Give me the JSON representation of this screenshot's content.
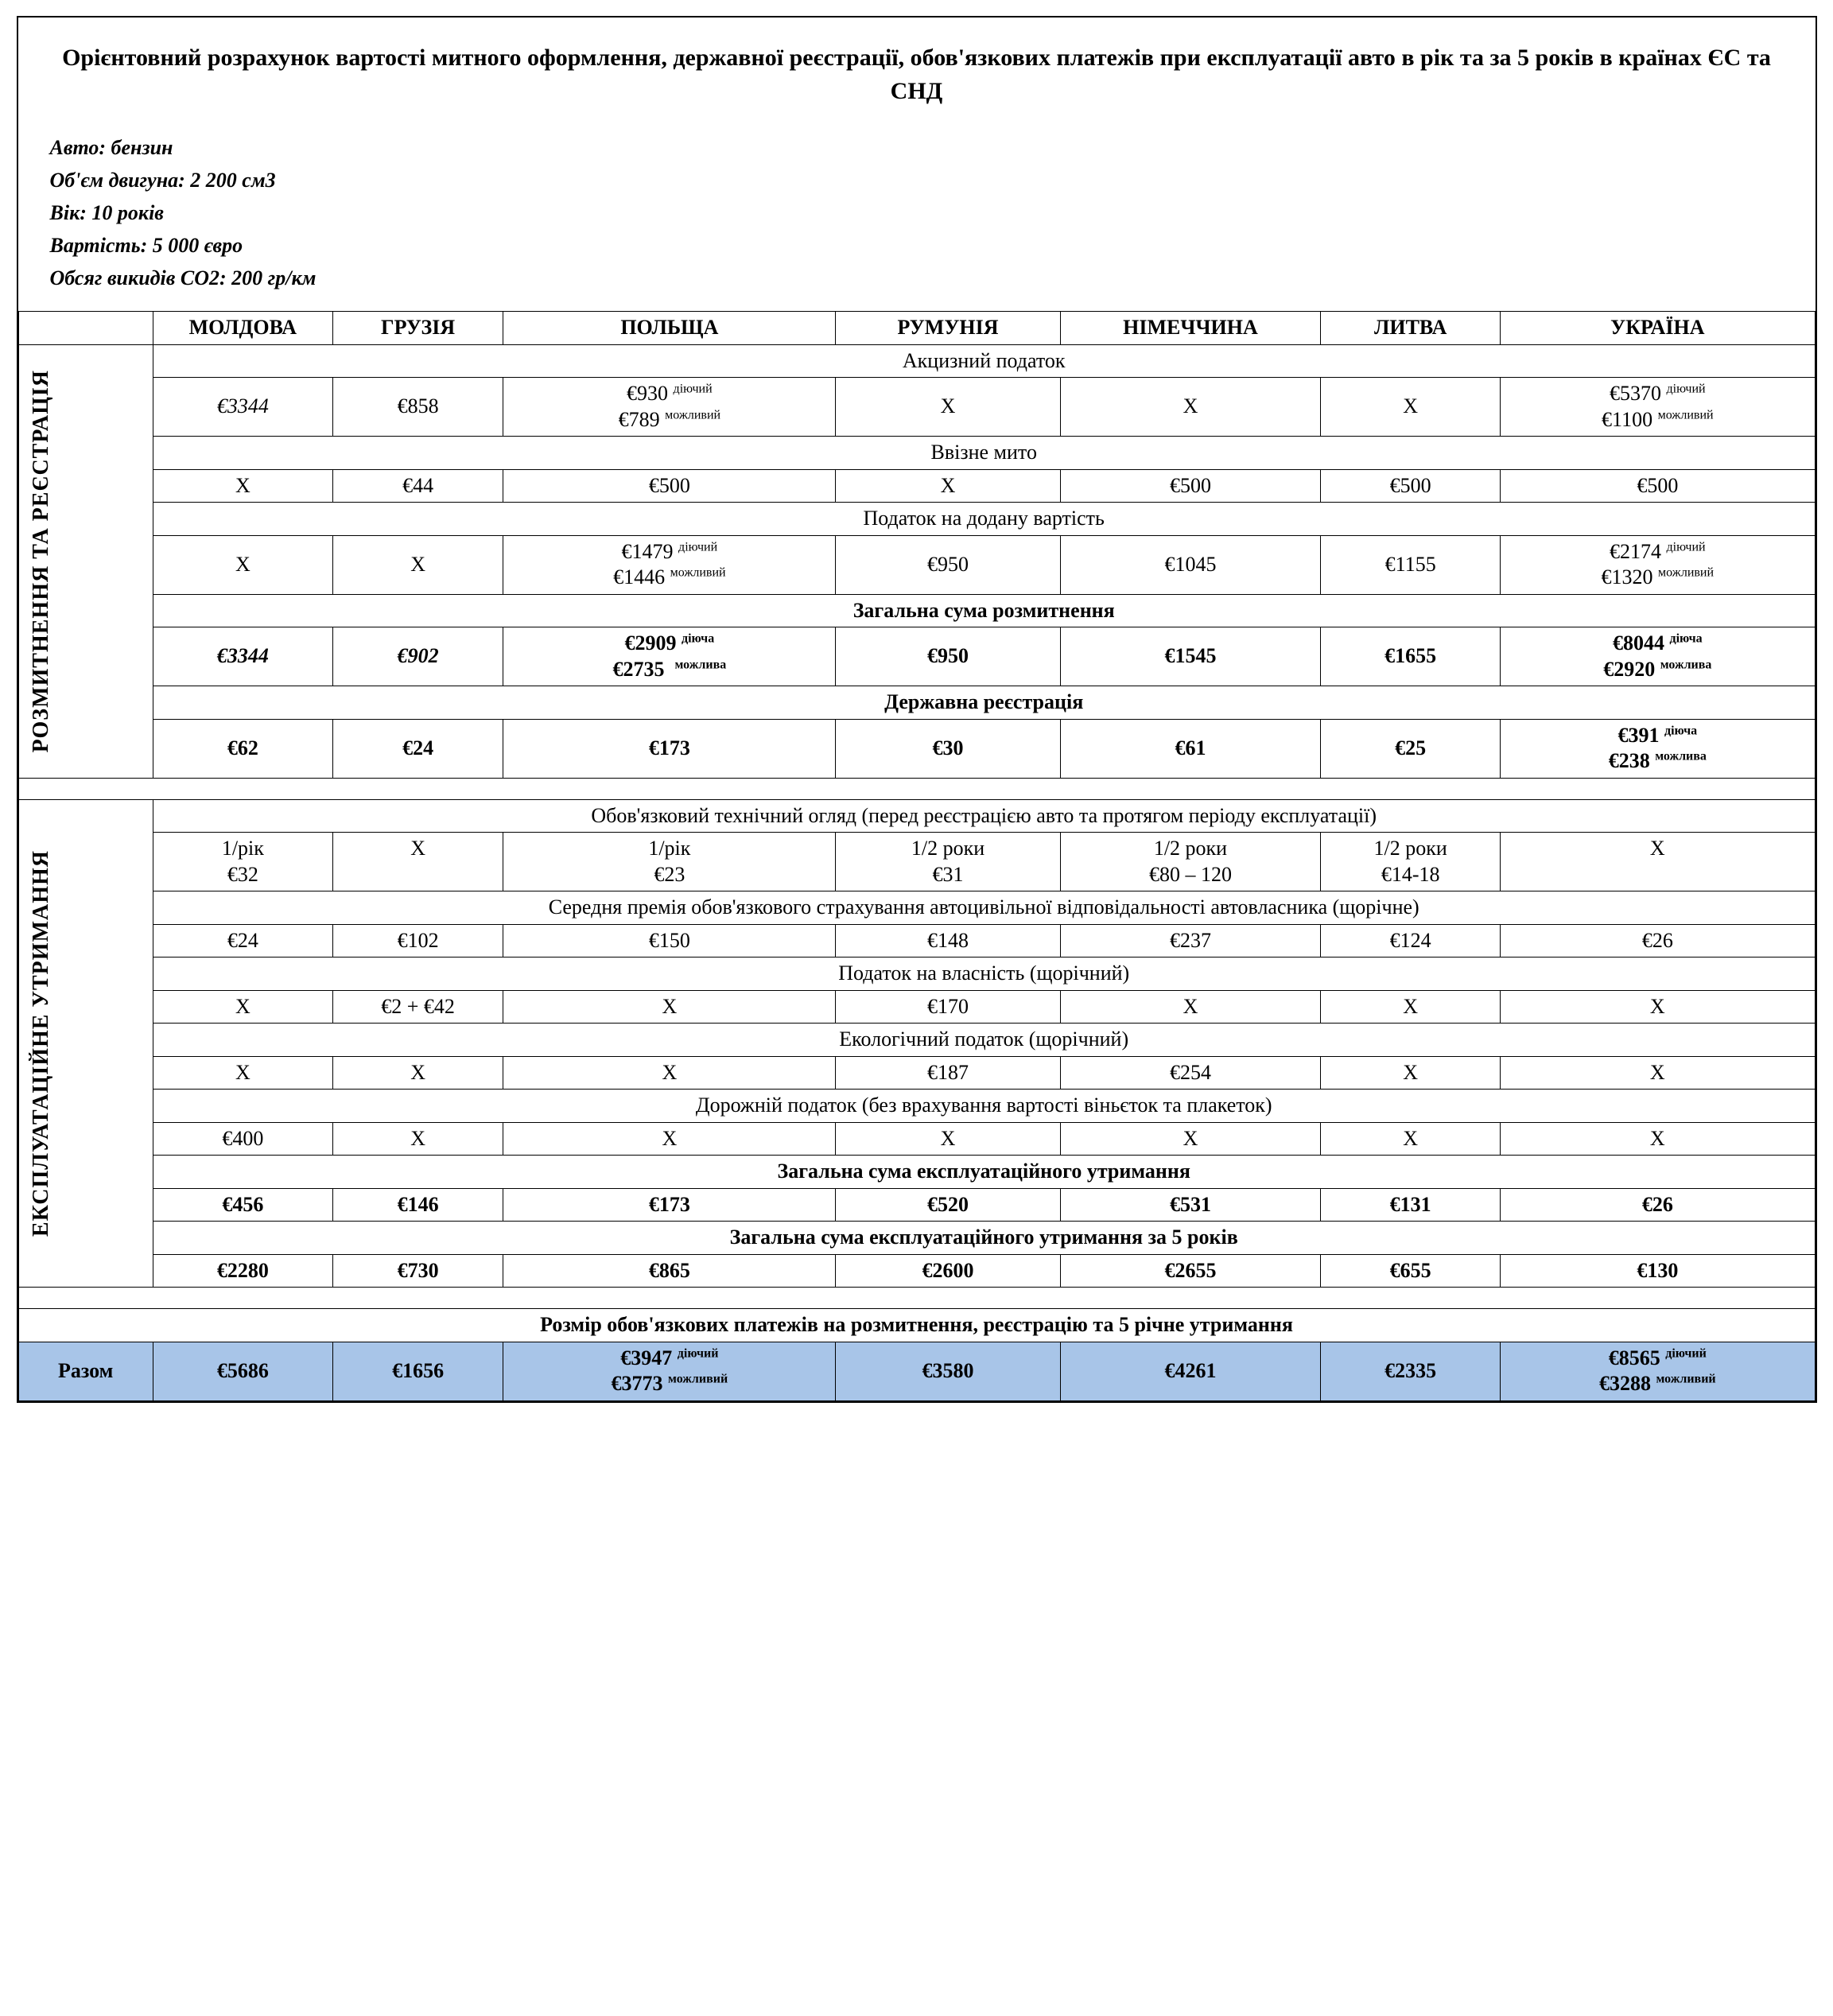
{
  "title": "Орієнтовний розрахунок вартості митного оформлення, державної реєстрації, обов'язкових платежів при експлуатації авто в рік та за 5 років в країнах ЄС та СНД",
  "specs": {
    "fuel": "Авто: бензин",
    "engine": "Об'єм двигуна: 2 200 см3",
    "age": "Вік: 10 років",
    "price": "Вартість: 5 000 євро",
    "co2": "Обсяг викидів CO2: 200 гр/км"
  },
  "countries": [
    "МОЛДОВА",
    "ГРУЗІЯ",
    "ПОЛЬЩА",
    "РУМУНІЯ",
    "НІМЕЧЧИНА",
    "ЛИТВА",
    "УКРАЇНА"
  ],
  "sect1": {
    "vlabel": "РОЗМИТНЕННЯ ТА РЕЄСТРАЦІЯ",
    "excise_h": "Акцизний податок",
    "excise": {
      "md": "€3344",
      "ge": "€858",
      "pl_a": "€930",
      "pl_a_sup": "діючий",
      "pl_b": "€789",
      "pl_b_sup": "можливий",
      "ro": "Х",
      "de": "Х",
      "lt": "Х",
      "ua_a": "€5370",
      "ua_a_sup": "діючий",
      "ua_b": "€1100",
      "ua_b_sup": "можливий"
    },
    "import_h": "Ввізне мито",
    "import": {
      "md": "Х",
      "ge": "€44",
      "pl": "€500",
      "ro": "Х",
      "de": "€500",
      "lt": "€500",
      "ua": "€500"
    },
    "vat_h": "Податок на додану вартість",
    "vat": {
      "md": "Х",
      "ge": "Х",
      "pl_a": "€1479",
      "pl_a_sup": "діючий",
      "pl_b": "€1446",
      "pl_b_sup": "можливий",
      "ro": "€950",
      "de": "€1045",
      "lt": "€1155",
      "ua_a": "€2174",
      "ua_a_sup": "діючий",
      "ua_b": "€1320",
      "ua_b_sup": "можливий"
    },
    "total_h": "Загальна сума розмитнення",
    "total": {
      "md": "€3344",
      "ge": "€902",
      "pl_a": "€2909",
      "pl_a_sup": "діюча",
      "pl_b": "€2735",
      "pl_b_sup": "можлива",
      "ro": "€950",
      "de": "€1545",
      "lt": "€1655",
      "ua_a": "€8044",
      "ua_a_sup": "діюча",
      "ua_b": "€2920",
      "ua_b_sup": "можлива"
    },
    "reg_h": "Державна реєстрація",
    "reg": {
      "md": "€62",
      "ge": "€24",
      "pl": "€173",
      "ro": "€30",
      "de": "€61",
      "lt": "€25",
      "ua_a": "€391",
      "ua_a_sup": "діюча",
      "ua_b": "€238",
      "ua_b_sup": "можлива"
    }
  },
  "sect2": {
    "vlabel": "ЕКСПЛУАТАЦІЙНЕ УТРИМАННЯ",
    "tech_h": "Обов'язковий технічний огляд (перед реєстрацією авто та протягом періоду експлуатації)",
    "tech": {
      "md_a": "1/рік",
      "md_b": "€32",
      "ge": "Х",
      "pl_a": "1/рік",
      "pl_b": "€23",
      "ro_a": "1/2 роки",
      "ro_b": "€31",
      "de_a": "1/2 роки",
      "de_b": "€80 – 120",
      "lt_a": "1/2 роки",
      "lt_b": "€14-18",
      "ua": "Х"
    },
    "ins_h": "Середня премія обов'язкового страхування автоцивільної відповідальності автовласника (щорічне)",
    "ins": {
      "md": "€24",
      "ge": "€102",
      "pl": "€150",
      "ro": "€148",
      "de": "€237",
      "lt": "€124",
      "ua": "€26"
    },
    "prop_h": "Податок на власність (щорічний)",
    "prop": {
      "md": "Х",
      "ge": "€2  + €42",
      "pl": "Х",
      "ro": "€170",
      "de": "Х",
      "lt": "Х",
      "ua": "Х"
    },
    "eco_h": "Екологічний податок (щорічний)",
    "eco": {
      "md": "Х",
      "ge": "Х",
      "pl": "Х",
      "ro": "€187",
      "de": "€254",
      "lt": "Х",
      "ua": "Х"
    },
    "road_h": "Дорожній податок (без врахування вартості віньєток та плакеток)",
    "road": {
      "md": "€400",
      "ge": "Х",
      "pl": "Х",
      "ro": "Х",
      "de": "Х",
      "lt": "Х",
      "ua": "Х"
    },
    "ytotal_h": "Загальна сума експлуатаційного утримання",
    "ytotal": {
      "md": "€456",
      "ge": "€146",
      "pl": "€173",
      "ro": "€520",
      "de": "€531",
      "lt": "€131",
      "ua": "€26"
    },
    "total5_h": "Загальна сума експлуатаційного утримання за 5 років",
    "total5": {
      "md": "€2280",
      "ge": "€730",
      "pl": "€865",
      "ro": "€2600",
      "de": "€2655",
      "lt": "€655",
      "ua": "€130"
    }
  },
  "final": {
    "title": "Розмір обов'язкових платежів на розмитнення, реєстрацію та 5 річне утримання",
    "label": "Разом",
    "md": "€5686",
    "ge": "€1656",
    "pl_a": "€3947",
    "pl_a_sup": "діючий",
    "pl_b": "€3773",
    "pl_b_sup": "можливий",
    "ro": "€3580",
    "de": "€4261",
    "lt": "€2335",
    "ua_a": "€8565",
    "ua_a_sup": "діючий",
    "ua_b": "€3288",
    "ua_b_sup": "можливий"
  }
}
